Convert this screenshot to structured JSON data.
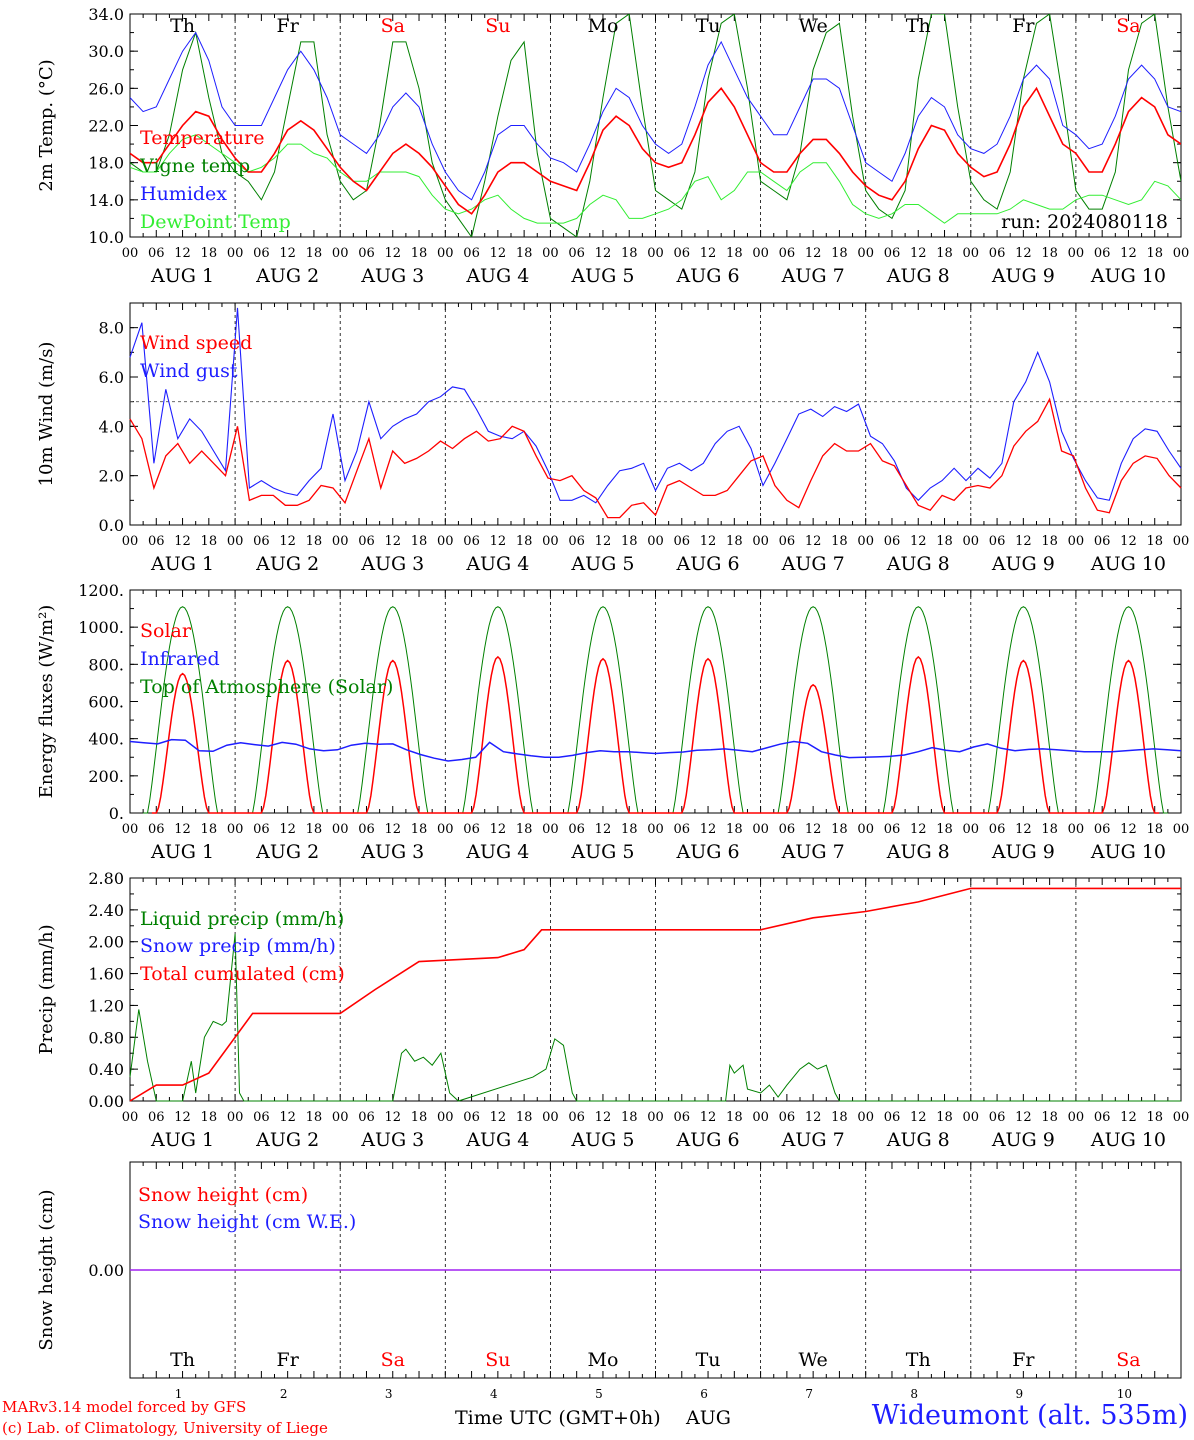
{
  "footer": {
    "credit_line1": "MARv3.14 model forced by GFS",
    "credit_line2": "(c) Lab. of Climatology, University of Liege",
    "time_label": "Time UTC (GMT+0h)",
    "month_label": "AUG",
    "station": "Wideumont (alt. 535m)"
  },
  "run_label": "run: 2024080118",
  "colors": {
    "red": "#ff0000",
    "green": "#008000",
    "blue": "#1e1eff",
    "lightgreen": "#33ee33",
    "purple": "#a020f0",
    "weekend": "#ff0000",
    "weekday": "#000000"
  },
  "days": [
    {
      "dow": "Th",
      "date": "1",
      "weekend": false
    },
    {
      "dow": "Fr",
      "date": "2",
      "weekend": false
    },
    {
      "dow": "Sa",
      "date": "3",
      "weekend": true
    },
    {
      "dow": "Su",
      "date": "4",
      "weekend": true
    },
    {
      "dow": "Mo",
      "date": "5",
      "weekend": false
    },
    {
      "dow": "Tu",
      "date": "6",
      "weekend": false
    },
    {
      "dow": "We",
      "date": "7",
      "weekend": false
    },
    {
      "dow": "Th",
      "date": "8",
      "weekend": false
    },
    {
      "dow": "Fr",
      "date": "9",
      "weekend": false
    },
    {
      "dow": "Sa",
      "date": "10",
      "weekend": true
    }
  ],
  "hour_ticks": [
    "00",
    "06",
    "12",
    "18"
  ],
  "chart_data": [
    {
      "type": "line",
      "ylabel": "2m Temp. (°C)",
      "ylim": [
        10,
        34
      ],
      "yticks": [
        "10.0",
        "14.0",
        "18.0",
        "22.0",
        "26.0",
        "30.0",
        "34.0"
      ],
      "x": "hours since Aug 1 00 UTC (3-hourly)",
      "series": [
        {
          "name": "Temperature",
          "color": "red",
          "values": [
            19,
            18,
            18,
            20,
            22,
            23.5,
            23,
            20.5,
            18.5,
            17,
            17,
            19,
            21.5,
            22.5,
            21.5,
            19.5,
            17.5,
            16,
            15,
            17,
            19,
            20,
            19,
            17.5,
            15.5,
            13.5,
            12.5,
            14.5,
            17,
            18,
            18,
            17,
            16,
            15.5,
            15,
            18,
            21.5,
            23,
            22,
            19.5,
            18,
            17.5,
            18,
            21,
            24.5,
            26,
            24,
            21,
            18,
            17,
            17,
            19,
            20.5,
            20.5,
            19,
            17,
            15.5,
            14.5,
            14,
            16,
            19.5,
            22,
            21.5,
            19,
            17.5,
            16.5,
            17,
            20,
            24,
            26,
            23,
            20,
            19,
            17,
            17,
            20,
            23.5,
            25,
            24,
            21,
            20
          ]
        },
        {
          "name": "Vigne temp",
          "color": "green",
          "values": [
            18,
            17,
            17,
            21,
            28,
            32,
            25,
            19,
            17,
            16,
            14,
            17,
            24,
            31,
            31,
            21,
            16,
            14,
            15,
            22,
            31,
            31,
            26,
            18,
            14,
            12,
            10,
            16,
            23,
            29,
            31,
            19,
            12,
            11,
            10,
            16,
            25,
            33,
            34,
            24,
            15,
            14,
            13,
            17,
            27,
            33,
            34,
            26,
            16,
            15,
            14,
            19,
            28,
            32,
            33,
            23,
            15,
            13,
            12,
            15,
            27,
            34,
            34,
            24,
            16,
            14,
            13,
            17,
            27,
            33,
            34,
            25,
            15,
            13,
            13,
            17,
            28,
            33,
            34,
            24,
            16
          ]
        },
        {
          "name": "Humidex",
          "color": "blue",
          "values": [
            25,
            23.5,
            24,
            27,
            30,
            32,
            29,
            24,
            22,
            22,
            22,
            25,
            28,
            30,
            28,
            25,
            21,
            20,
            19,
            21,
            24,
            25.5,
            24,
            20,
            17,
            15,
            14,
            17,
            21,
            22,
            22,
            20,
            18.5,
            18,
            17,
            20,
            23.5,
            26,
            25,
            22,
            20,
            19,
            20,
            24,
            28.5,
            31,
            28,
            25,
            23,
            21,
            21,
            24,
            27,
            27,
            26,
            22,
            18,
            17,
            16,
            19,
            23,
            25,
            24,
            21,
            19.5,
            19,
            20,
            23,
            27,
            28.5,
            27,
            22,
            21,
            19.5,
            20,
            23,
            27,
            28.5,
            27,
            24,
            23.5
          ]
        },
        {
          "name": "DewPoint Temp",
          "color": "lightgreen",
          "values": [
            17.5,
            17,
            17,
            19,
            20.5,
            21,
            20,
            19,
            18,
            17,
            17.5,
            18.5,
            20,
            20,
            19,
            18.5,
            17,
            16,
            16,
            17,
            17,
            17,
            16.5,
            14.5,
            13,
            12.5,
            13,
            14,
            14.5,
            13,
            12,
            11.5,
            11.5,
            11.5,
            12,
            13.5,
            14.5,
            14,
            12,
            12,
            12.5,
            13,
            14,
            16,
            16.5,
            14,
            15,
            17,
            17,
            16,
            15,
            17,
            18,
            18,
            16,
            13.5,
            12.5,
            12,
            12.5,
            13.5,
            13.5,
            12.5,
            11.5,
            12.5,
            12.5,
            12.5,
            12.5,
            13,
            14,
            13.5,
            13,
            13,
            14,
            14.5,
            14.5,
            14,
            13.5,
            14,
            16,
            15.5,
            14
          ]
        }
      ]
    },
    {
      "type": "line",
      "ylabel": "10m Wind (m/s)",
      "ylim": [
        0,
        9
      ],
      "yticks": [
        "0.0",
        "2.0",
        "4.0",
        "6.0",
        "8.0"
      ],
      "reference_line": 5,
      "series": [
        {
          "name": "Wind speed",
          "color": "red",
          "values": [
            4.3,
            3.5,
            1.5,
            2.8,
            3.3,
            2.5,
            3,
            2.5,
            2,
            4,
            1,
            1.2,
            1.2,
            0.8,
            0.8,
            1,
            1.6,
            1.5,
            0.9,
            2.2,
            3.5,
            1.5,
            3,
            2.5,
            2.7,
            3,
            3.4,
            3.1,
            3.5,
            3.8,
            3.4,
            3.5,
            4,
            3.8,
            2.8,
            1.9,
            1.8,
            2,
            1.4,
            1.1,
            0.3,
            0.3,
            0.8,
            0.9,
            0.4,
            1.6,
            1.8,
            1.5,
            1.2,
            1.2,
            1.4,
            2,
            2.6,
            2.8,
            1.6,
            1,
            0.7,
            1.8,
            2.8,
            3.3,
            3,
            3,
            3.3,
            2.6,
            2.4,
            1.6,
            0.8,
            0.6,
            1.2,
            1,
            1.5,
            1.6,
            1.5,
            2,
            3.2,
            3.8,
            4.2,
            5.1,
            3,
            2.8,
            1.5,
            0.6,
            0.5,
            1.8,
            2.5,
            2.8,
            2.7,
            2,
            1.5
          ]
        },
        {
          "name": "Wind gust",
          "color": "blue",
          "values": [
            6.8,
            8.2,
            2.5,
            5.5,
            3.5,
            4.3,
            3.8,
            3,
            2.2,
            8.8,
            1.5,
            1.8,
            1.5,
            1.3,
            1.2,
            1.8,
            2.3,
            4.5,
            1.8,
            3,
            5,
            3.5,
            4,
            4.3,
            4.5,
            5,
            5.2,
            5.6,
            5.5,
            4.7,
            3.8,
            3.6,
            3.5,
            3.8,
            3.2,
            2.2,
            1,
            1,
            1.2,
            0.9,
            1.6,
            2.2,
            2.3,
            2.5,
            1.4,
            2.3,
            2.5,
            2.2,
            2.5,
            3.3,
            3.8,
            4,
            3.1,
            1.6,
            2.5,
            3.5,
            4.5,
            4.7,
            4.4,
            4.8,
            4.6,
            4.9,
            3.6,
            3.3,
            2.6,
            1.5,
            1,
            1.5,
            1.8,
            2.3,
            1.8,
            2.3,
            1.9,
            2.5,
            5,
            5.8,
            7,
            5.8,
            3.8,
            2.7,
            1.8,
            1.1,
            1,
            2.5,
            3.5,
            3.9,
            3.8,
            3,
            2.3
          ]
        }
      ]
    },
    {
      "type": "line",
      "ylabel": "Energy fluxes (W/m²)",
      "ylim": [
        0,
        1200
      ],
      "yticks": [
        "0.",
        "200.",
        "400.",
        "600.",
        "800.",
        "1000.",
        "1200."
      ],
      "series": [
        {
          "name": "Solar",
          "color": "red",
          "peaks": [
            750,
            820,
            820,
            840,
            830,
            830,
            690,
            840,
            820,
            820
          ]
        },
        {
          "name": "Infrared",
          "color": "blue",
          "values": [
            385,
            378,
            372,
            395,
            392,
            335,
            332,
            365,
            378,
            368,
            360,
            380,
            370,
            345,
            335,
            340,
            365,
            375,
            370,
            372,
            340,
            315,
            295,
            280,
            288,
            300,
            380,
            330,
            318,
            308,
            300,
            300,
            310,
            325,
            335,
            330,
            330,
            325,
            320,
            325,
            328,
            338,
            340,
            345,
            338,
            330,
            350,
            370,
            385,
            375,
            330,
            312,
            298,
            300,
            302,
            305,
            312,
            330,
            352,
            338,
            330,
            355,
            372,
            348,
            335,
            342,
            345,
            340,
            335,
            330,
            330,
            330,
            335,
            340,
            345,
            340,
            335
          ]
        },
        {
          "name": "Top of Atmosphere (Solar)",
          "color": "green",
          "peak": 1110
        }
      ]
    },
    {
      "type": "line",
      "ylabel": "Precip (mm/h)",
      "ylim": [
        0,
        2.8
      ],
      "yticks": [
        "0.00",
        "0.40",
        "0.80",
        "1.20",
        "1.60",
        "2.00",
        "2.40",
        "2.80"
      ],
      "series": [
        {
          "name": "Liquid precip (mm/h)",
          "color": "green"
        },
        {
          "name": "Snow precip (mm/h)",
          "color": "blue"
        },
        {
          "name": "Total cumulated (cm)",
          "color": "red",
          "values": [
            [
              0,
              0
            ],
            [
              6,
              0.2
            ],
            [
              12,
              0.2
            ],
            [
              18,
              0.35
            ],
            [
              28,
              1.1
            ],
            [
              48,
              1.1
            ],
            [
              56,
              1.4
            ],
            [
              66,
              1.75
            ],
            [
              84,
              1.8
            ],
            [
              90,
              1.9
            ],
            [
              94,
              2.15
            ],
            [
              135,
              2.15
            ],
            [
              144,
              2.15
            ],
            [
              156,
              2.3
            ],
            [
              168,
              2.38
            ],
            [
              180,
              2.5
            ],
            [
              192,
              2.67
            ],
            [
              240,
              2.67
            ]
          ]
        }
      ]
    },
    {
      "type": "line",
      "ylabel": "Snow height (cm)",
      "yticks": [
        "0.00"
      ],
      "series": [
        {
          "name": "Snow height (cm)",
          "color": "red",
          "values": [
            0
          ]
        },
        {
          "name": "Snow height (cm W.E.)",
          "color": "blue",
          "values": [
            0
          ]
        }
      ]
    }
  ]
}
